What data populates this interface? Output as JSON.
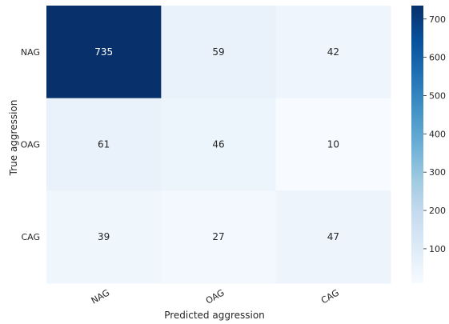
{
  "chart_data": {
    "type": "heatmap",
    "title": "",
    "xlabel": "Predicted aggression",
    "ylabel": "True aggression",
    "x_categories": [
      "NAG",
      "OAG",
      "CAG"
    ],
    "y_categories": [
      "NAG",
      "OAG",
      "CAG"
    ],
    "values": [
      [
        735,
        59,
        42
      ],
      [
        61,
        46,
        10
      ],
      [
        39,
        27,
        47
      ]
    ],
    "colorbar": {
      "min": 10,
      "max": 735,
      "ticks": [
        100,
        200,
        300,
        400,
        500,
        600,
        700
      ],
      "colormap": "Blues",
      "low_color": "#f7fbff",
      "high_color": "#08306b"
    }
  }
}
